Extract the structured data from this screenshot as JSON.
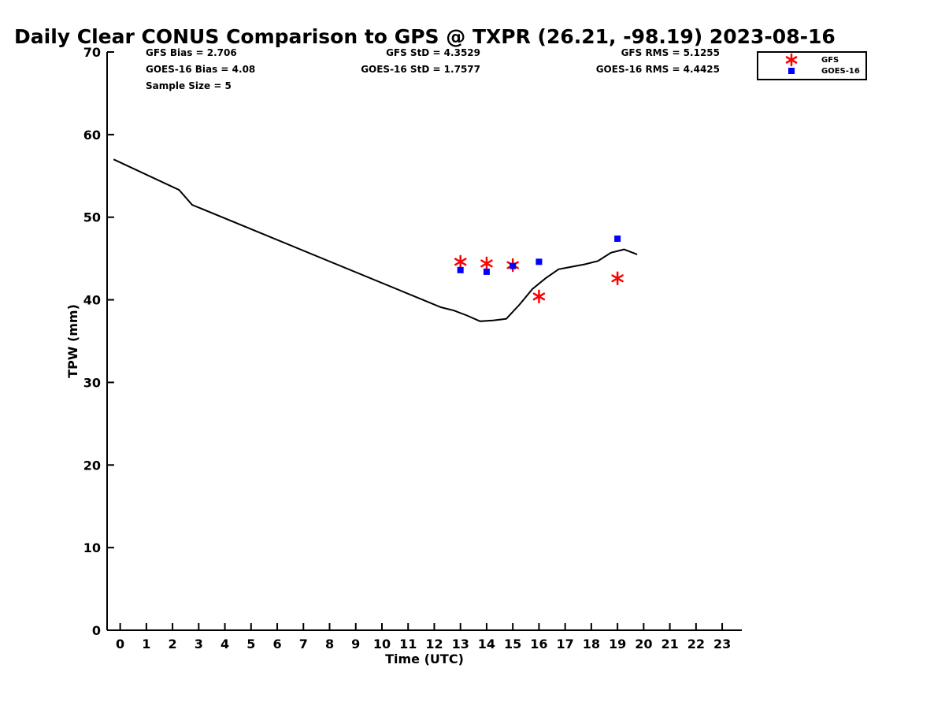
{
  "chart_data": {
    "type": "line",
    "title": "Daily Clear CONUS Comparison to GPS @ TXPR (26.21, -98.19) 2023-08-16",
    "xlabel": "Time (UTC)",
    "ylabel": "TPW (mm)",
    "xlim": [
      -0.5,
      23.75
    ],
    "ylim": [
      0,
      70
    ],
    "x_ticks": [
      0,
      1,
      2,
      3,
      4,
      5,
      6,
      7,
      8,
      9,
      10,
      11,
      12,
      13,
      14,
      15,
      16,
      17,
      18,
      19,
      20,
      21,
      22,
      23
    ],
    "y_ticks": [
      0,
      10,
      20,
      30,
      40,
      50,
      60,
      70
    ],
    "grid": false,
    "legend_placement": "top-right",
    "stats": {
      "gfs_bias": "GFS Bias = 2.706",
      "goes_bias": "GOES-16 Bias = 4.08",
      "sample_size": "Sample Size = 5",
      "gfs_std": "GFS StD = 4.3529",
      "goes_std": "GOES-16 StD = 1.7577",
      "gfs_rms": "GFS RMS = 5.1255",
      "goes_rms": "GOES-16 RMS = 4.4425"
    },
    "series": [
      {
        "kind": "line",
        "color": "#000000",
        "x": [
          -0.25,
          2.25,
          2.75,
          12.25,
          12.75,
          13.25,
          13.75,
          14.25,
          14.75,
          15.25,
          15.75,
          16.25,
          16.75,
          17.25,
          17.75,
          18.25,
          18.75,
          19.25,
          19.75
        ],
        "y": [
          57.0,
          53.3,
          51.5,
          39.1,
          38.7,
          38.1,
          37.4,
          37.5,
          37.7,
          39.4,
          41.3,
          42.6,
          43.7,
          44.0,
          44.3,
          44.7,
          45.7,
          46.1,
          45.5
        ]
      },
      {
        "name": "GFS",
        "kind": "marker",
        "marker": "asterisk",
        "color": "#ff0000",
        "x": [
          13,
          14,
          15,
          16,
          19
        ],
        "y": [
          44.6,
          44.4,
          44.2,
          40.4,
          42.6
        ]
      },
      {
        "name": "GOES-16",
        "kind": "marker",
        "marker": "square",
        "color": "#0000ff",
        "x": [
          13,
          14,
          15,
          16,
          19
        ],
        "y": [
          43.6,
          43.4,
          44.1,
          44.6,
          47.4
        ]
      }
    ]
  }
}
